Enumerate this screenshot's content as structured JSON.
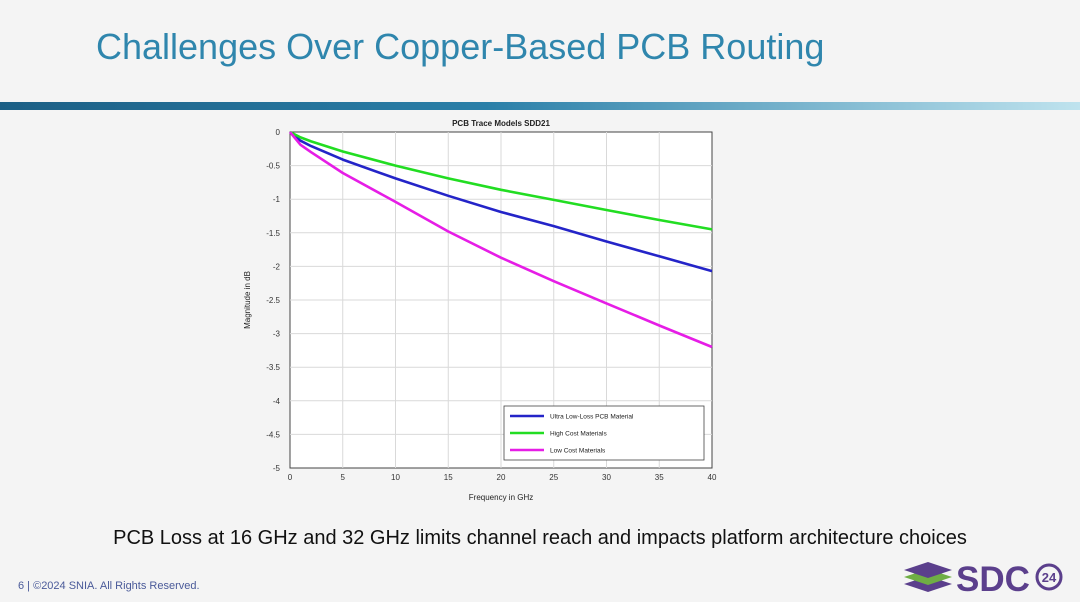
{
  "slide": {
    "title": "Challenges Over Copper-Based PCB Routing",
    "subtitle": "PCB Loss at 16 GHz and 32 GHz limits channel reach and impacts platform architecture choices",
    "footer": "6 | ©2024 SNIA. All Rights Reserved.",
    "logo_text": "SDC",
    "logo_badge": "24"
  },
  "chart_data": {
    "type": "line",
    "title": "PCB Trace Models SDD21",
    "xlabel": "Frequency in GHz",
    "ylabel": "Magnitude in dB",
    "xlim": [
      0,
      40
    ],
    "ylim": [
      -5,
      0
    ],
    "xticks": [
      "0",
      "5",
      "10",
      "15",
      "20",
      "25",
      "30",
      "35",
      "40"
    ],
    "yticks": [
      "0",
      "-0.5",
      "-1",
      "-1.5",
      "-2",
      "-2.5",
      "-3",
      "-3.5",
      "-4",
      "-4.5",
      "-5"
    ],
    "grid": true,
    "legend_position": "bottom-right",
    "x": [
      0,
      1,
      2,
      5,
      10,
      15,
      20,
      25,
      30,
      35,
      40
    ],
    "series": [
      {
        "name": "Ultra Low-Loss PCB Material",
        "color": "#2424c8",
        "values": [
          0,
          -0.13,
          -0.21,
          -0.41,
          -0.69,
          -0.95,
          -1.19,
          -1.4,
          -1.63,
          -1.85,
          -2.07
        ]
      },
      {
        "name": "High Cost Materials",
        "color": "#22dd22",
        "values": [
          0,
          -0.08,
          -0.14,
          -0.29,
          -0.5,
          -0.69,
          -0.86,
          -1.01,
          -1.16,
          -1.31,
          -1.45
        ]
      },
      {
        "name": "Low Cost Materials",
        "color": "#e61de6",
        "values": [
          0,
          -0.19,
          -0.3,
          -0.61,
          -1.04,
          -1.48,
          -1.87,
          -2.22,
          -2.55,
          -2.88,
          -3.2
        ]
      }
    ]
  }
}
